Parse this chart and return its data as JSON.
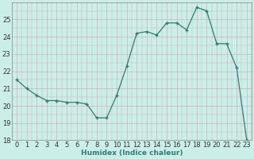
{
  "xlabel": "Humidex (Indice chaleur)",
  "x": [
    0,
    1,
    2,
    3,
    4,
    5,
    6,
    7,
    8,
    9,
    10,
    11,
    12,
    13,
    14,
    15,
    16,
    17,
    18,
    19,
    20,
    21,
    22,
    23
  ],
  "y": [
    21.5,
    21.0,
    20.6,
    20.3,
    20.3,
    20.2,
    20.2,
    20.1,
    19.3,
    19.3,
    20.6,
    22.3,
    24.2,
    24.3,
    24.1,
    24.8,
    24.8,
    24.4,
    25.7,
    25.5,
    23.6,
    23.6,
    22.2,
    18.0
  ],
  "line_color": "#2e7d70",
  "marker_color": "#2e7d70",
  "bg_color": "#cceee8",
  "grid_color": "#c8b4bc",
  "ylim": [
    18,
    26
  ],
  "xlim": [
    -0.5,
    23.5
  ],
  "yticks": [
    18,
    19,
    20,
    21,
    22,
    23,
    24,
    25
  ],
  "xticks": [
    0,
    1,
    2,
    3,
    4,
    5,
    6,
    7,
    8,
    9,
    10,
    11,
    12,
    13,
    14,
    15,
    16,
    17,
    18,
    19,
    20,
    21,
    22,
    23
  ],
  "label_fontsize": 6.5,
  "tick_fontsize": 6.0
}
